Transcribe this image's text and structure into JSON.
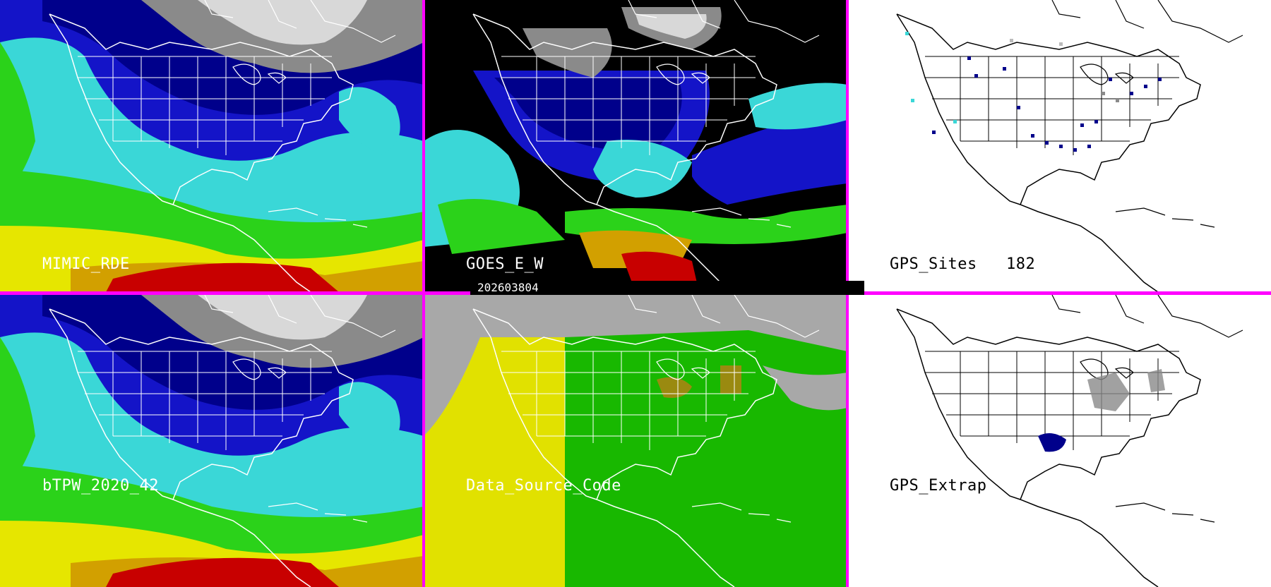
{
  "panels": {
    "mimic": {
      "label": "MIMIC_RDE"
    },
    "goes": {
      "label": "GOES_E_W"
    },
    "gps_sites": {
      "label": "GPS_Sites",
      "count": "182"
    },
    "btpw": {
      "label": "bTPW_2020_42"
    },
    "data_source": {
      "label": "Data_Source_Code"
    },
    "gps_extrap": {
      "label": "GPS_Extrap"
    }
  },
  "timestamp": "202603804",
  "colors": {
    "divider": "#ff00ff",
    "dry": "#2a2a2a",
    "gray_high": "#d8d8d8",
    "navy": "#00008b",
    "blue": "#1414c8",
    "cyan": "#3ad7d7",
    "green": "#2bd21a",
    "yellow": "#e6e600",
    "orange": "#d2a000",
    "red": "#c80000",
    "source_gray": "#a8a8a8",
    "source_yellow": "#e1e100",
    "source_green": "#18b800",
    "source_olive": "#9a8a10"
  }
}
